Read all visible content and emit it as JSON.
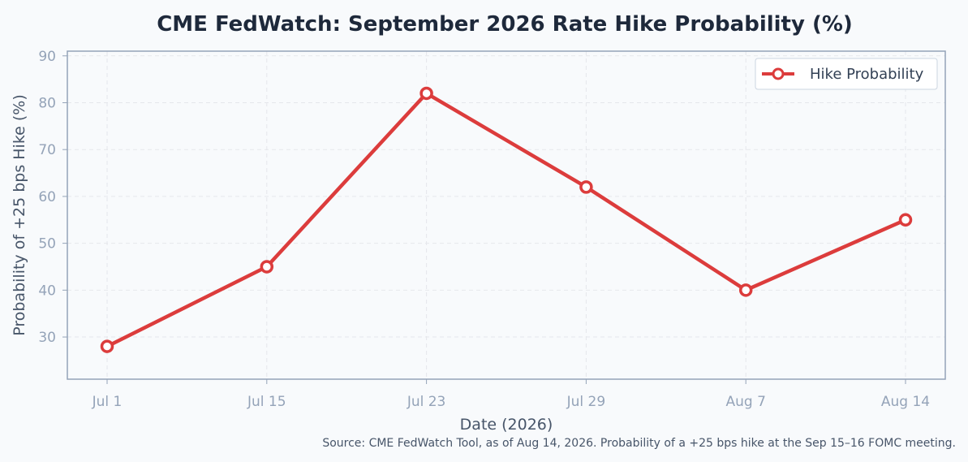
{
  "chart_data": {
    "type": "line",
    "title": "CME FedWatch: September 2026 Rate Hike Probability (%)",
    "xlabel": "Date (2026)",
    "ylabel": "Probability of +25 bps Hike (%)",
    "categories": [
      "Jul 1",
      "Jul 15",
      "Jul 23",
      "Jul 29",
      "Aug 7",
      "Aug 14"
    ],
    "series": [
      {
        "name": "Hike Probability",
        "values": [
          28,
          45,
          82,
          62,
          40,
          55
        ],
        "color": "#dc3c3c"
      }
    ],
    "ylim": [
      21,
      91
    ],
    "yticks": [
      30,
      40,
      50,
      60,
      70,
      80,
      90
    ],
    "grid": true,
    "legend": "top-right",
    "source": "Source: CME FedWatch Tool, as of Aug 14, 2026. Probability of a +25 bps hike at the Sep 15–16 FOMC meeting."
  }
}
